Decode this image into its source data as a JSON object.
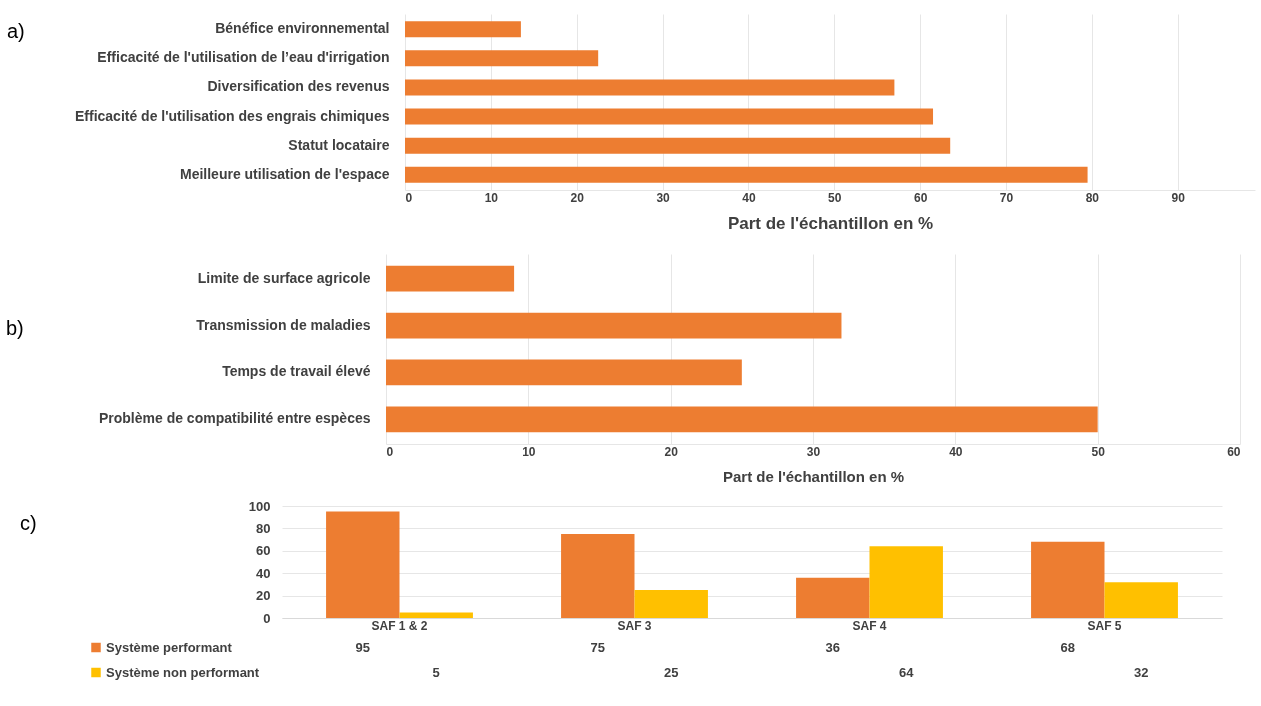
{
  "chart_data": [
    {
      "type": "bar",
      "orientation": "horizontal",
      "categories": [
        "Bénéfice environnemental",
        "Efficacité de l'utilisation de l’eau d'irrigation",
        "Diversification des revenus",
        "Efficacité de l'utilisation des engrais chimiques",
        "Statut locataire",
        "Meilleure utilisation de l'espace"
      ],
      "values": [
        13.5,
        22.5,
        57,
        61.5,
        63.5,
        79.5
      ],
      "color": "#ed7d31",
      "xlabel": "Part de l'échantillon en %",
      "xlim": [
        0,
        99
      ],
      "xticks": [
        0,
        10,
        20,
        30,
        40,
        50,
        60,
        70,
        80,
        90
      ],
      "grid": "x",
      "annotations": [
        "a)"
      ]
    },
    {
      "type": "bar",
      "orientation": "horizontal",
      "categories": [
        "Limite de surface agricole",
        "Transmission de maladies",
        "Temps de travail élevé",
        "Problème de compatibilité  entre espèces"
      ],
      "values": [
        9,
        32,
        25,
        50
      ],
      "color": "#ed7d31",
      "xlabel": "Part de l'échantillon en %",
      "xlim": [
        0,
        60
      ],
      "xticks": [
        0,
        10,
        20,
        30,
        40,
        50,
        60
      ],
      "grid": "x",
      "annotations": [
        "b)"
      ]
    },
    {
      "type": "bar",
      "categories": [
        "SAF 1 & 2",
        "SAF 3",
        "SAF 4",
        "SAF 5"
      ],
      "series": [
        {
          "name": "Système performant",
          "color": "#ed7d31",
          "values": [
            95,
            75,
            36,
            68
          ]
        },
        {
          "name": "Système non performant",
          "color": "#ffc000",
          "values": [
            5,
            25,
            64,
            32
          ]
        }
      ],
      "ylim": [
        0,
        100
      ],
      "yticks": [
        0,
        20,
        40,
        60,
        80,
        100
      ],
      "grid": "y",
      "legend": "bottom left",
      "data_labels": true,
      "annotations": [
        "c)"
      ]
    }
  ]
}
